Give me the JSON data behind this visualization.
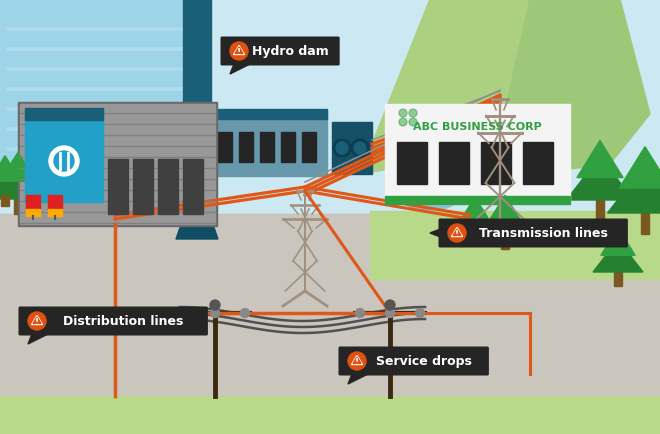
{
  "sky_color": "#cce8f2",
  "ground_color": "#cac5bd",
  "ground_grass": "#b8d48a",
  "hill_left": "#9ec87a",
  "hill_center": "#aad080",
  "hill_right": "#9ec878",
  "water_color": "#9dd4e8",
  "water_stripe": "#b8e0f0",
  "dam_dark": "#1a5f78",
  "dam_wall_color": "#0f4d65",
  "powerhouse_body": "#6898ac",
  "powerhouse_roof": "#1a5f78",
  "window_dark": "#252525",
  "transformer_dark": "#155068",
  "tower_color": "#a09080",
  "orange_line": "#e05818",
  "gray_line": "#909090",
  "dark_wire": "#505050",
  "label_bg": "#252525",
  "label_text": "#ffffff",
  "warning_tri": "#e05010",
  "substation_blue": "#22a0c8",
  "substation_gray": "#a0a0a0",
  "fence_line": "#808080",
  "tree_dark": "#258030",
  "tree_mid": "#30a040",
  "tree_trunk": "#7a5820",
  "biz_white": "#f4f4f4",
  "biz_green_stripe": "#30a040",
  "biz_text_green": "#30a040",
  "house_body": "#ececec",
  "house_roof_color": "#9a8878",
  "house_win": "#aac8d8",
  "pond_color": "#88c0d8",
  "green_lawn": "#b8d88a",
  "label_hydro": "Hydro dam",
  "label_trans": "Transmission lines",
  "label_dist": "Distribution lines",
  "label_service": "Service drops",
  "label_biz": "ABC BUSINESS CORP"
}
